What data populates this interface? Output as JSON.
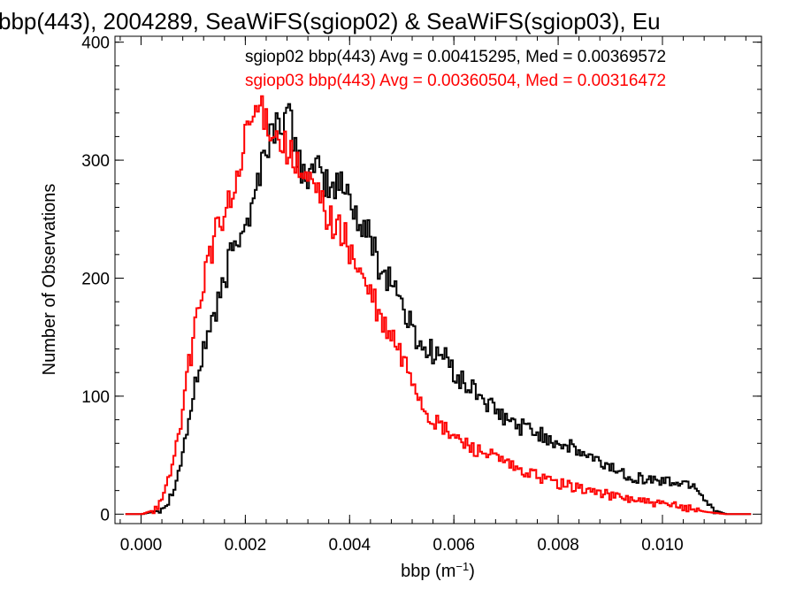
{
  "chart_data": {
    "type": "histogram",
    "title": "bbp(443), 2004289, SeaWiFS(sgiop02) & SeaWiFS(sgiop03), Eu",
    "xlabel_main": "bbp (m",
    "xlabel_exp": "−1",
    "xlabel_close": ")",
    "ylabel": "Number of Observations",
    "xlim": [
      -0.0005,
      0.0119
    ],
    "ylim": [
      -8,
      405
    ],
    "xticks": [
      {
        "value": 0.0,
        "label": "0.000"
      },
      {
        "value": 0.002,
        "label": "0.002"
      },
      {
        "value": 0.004,
        "label": "0.004"
      },
      {
        "value": 0.006,
        "label": "0.006"
      },
      {
        "value": 0.008,
        "label": "0.008"
      },
      {
        "value": 0.01,
        "label": "0.010"
      }
    ],
    "yticks": [
      {
        "value": 0,
        "label": "0"
      },
      {
        "value": 100,
        "label": "100"
      },
      {
        "value": 200,
        "label": "200"
      },
      {
        "value": 300,
        "label": "300"
      },
      {
        "value": 400,
        "label": "400"
      }
    ],
    "series": [
      {
        "name": "sgiop02",
        "color": "#000000",
        "legend": "sgiop02 bbp(443) Avg = 0.00415295, Med = 0.00369572",
        "x": [
          -0.0003,
          0.0,
          0.0003,
          0.0005,
          0.0007,
          0.0009,
          0.0011,
          0.0013,
          0.0015,
          0.0017,
          0.0019,
          0.0021,
          0.0023,
          0.0025,
          0.0027,
          0.0028,
          0.003,
          0.0032,
          0.0034,
          0.0036,
          0.0038,
          0.004,
          0.0042,
          0.0044,
          0.0046,
          0.0048,
          0.005,
          0.0052,
          0.0054,
          0.0056,
          0.0058,
          0.006,
          0.0062,
          0.0064,
          0.0066,
          0.0068,
          0.007,
          0.0072,
          0.0074,
          0.0076,
          0.0078,
          0.008,
          0.0082,
          0.0084,
          0.0086,
          0.0088,
          0.009,
          0.0092,
          0.0094,
          0.0096,
          0.0098,
          0.01,
          0.0102,
          0.0104,
          0.0106,
          0.0108,
          0.011,
          0.0112,
          0.0114,
          0.0117
        ],
        "y": [
          0,
          0,
          3,
          10,
          35,
          80,
          125,
          160,
          180,
          220,
          245,
          255,
          300,
          325,
          335,
          340,
          300,
          285,
          290,
          275,
          280,
          270,
          240,
          235,
          205,
          200,
          175,
          155,
          140,
          138,
          133,
          120,
          108,
          105,
          95,
          85,
          80,
          75,
          73,
          68,
          65,
          60,
          57,
          52,
          48,
          43,
          40,
          35,
          32,
          30,
          29,
          28,
          27,
          26,
          25,
          12,
          3,
          0,
          0,
          0
        ]
      },
      {
        "name": "sgiop03",
        "color": "#ff0000",
        "legend": "sgiop03 bbp(443) Avg = 0.00360504, Med = 0.00316472",
        "x": [
          -0.0003,
          0.0,
          0.0002,
          0.0004,
          0.0006,
          0.0008,
          0.001,
          0.0012,
          0.0014,
          0.0016,
          0.0018,
          0.002,
          0.0022,
          0.0024,
          0.0026,
          0.0028,
          0.003,
          0.0032,
          0.0034,
          0.0036,
          0.0038,
          0.004,
          0.0042,
          0.0044,
          0.0046,
          0.0048,
          0.005,
          0.0052,
          0.0054,
          0.0056,
          0.0058,
          0.006,
          0.0062,
          0.0064,
          0.0066,
          0.0068,
          0.007,
          0.0072,
          0.0074,
          0.0076,
          0.0078,
          0.008,
          0.0082,
          0.0084,
          0.0086,
          0.0088,
          0.009,
          0.0092,
          0.0094,
          0.0096,
          0.0098,
          0.01,
          0.0102,
          0.0104,
          0.0106,
          0.0108,
          0.011,
          0.0112,
          0.0117
        ],
        "y": [
          0,
          0,
          3,
          12,
          45,
          95,
          155,
          205,
          235,
          255,
          275,
          320,
          345,
          335,
          320,
          310,
          290,
          280,
          270,
          250,
          240,
          225,
          200,
          185,
          160,
          150,
          130,
          115,
          90,
          78,
          72,
          65,
          60,
          55,
          52,
          47,
          43,
          37,
          35,
          32,
          29,
          26,
          24,
          22,
          20,
          18,
          16,
          14,
          13,
          11,
          9,
          8,
          7,
          6,
          4,
          2,
          1,
          0,
          0
        ]
      }
    ]
  }
}
